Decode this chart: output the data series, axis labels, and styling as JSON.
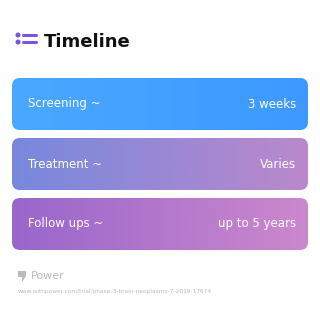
{
  "title": "Timeline",
  "background_color": "#ffffff",
  "title_fontsize": 13,
  "title_color": "#111111",
  "title_fontweight": "bold",
  "icon_color": "#7755dd",
  "rows": [
    {
      "label": "Screening ~",
      "value": "3 weeks",
      "color_left": "#4aa8ff",
      "color_right": "#3d99ff"
    },
    {
      "label": "Treatment ~",
      "value": "Varies",
      "color_left": "#7788dd",
      "color_right": "#bb88cc"
    },
    {
      "label": "Follow ups ~",
      "value": "up to 5 years",
      "color_left": "#9966cc",
      "color_right": "#cc88cc"
    }
  ],
  "row_text_color": "#ffffff",
  "row_label_fontsize": 8.5,
  "row_value_fontsize": 8.5,
  "footer_logo_text": "Power",
  "footer_logo_color": "#bbbbbb",
  "footer_url": "www.withpower.com/trial/phase-3-brain-neoplasms-7-2019-17674",
  "footer_fontsize": 4.2
}
